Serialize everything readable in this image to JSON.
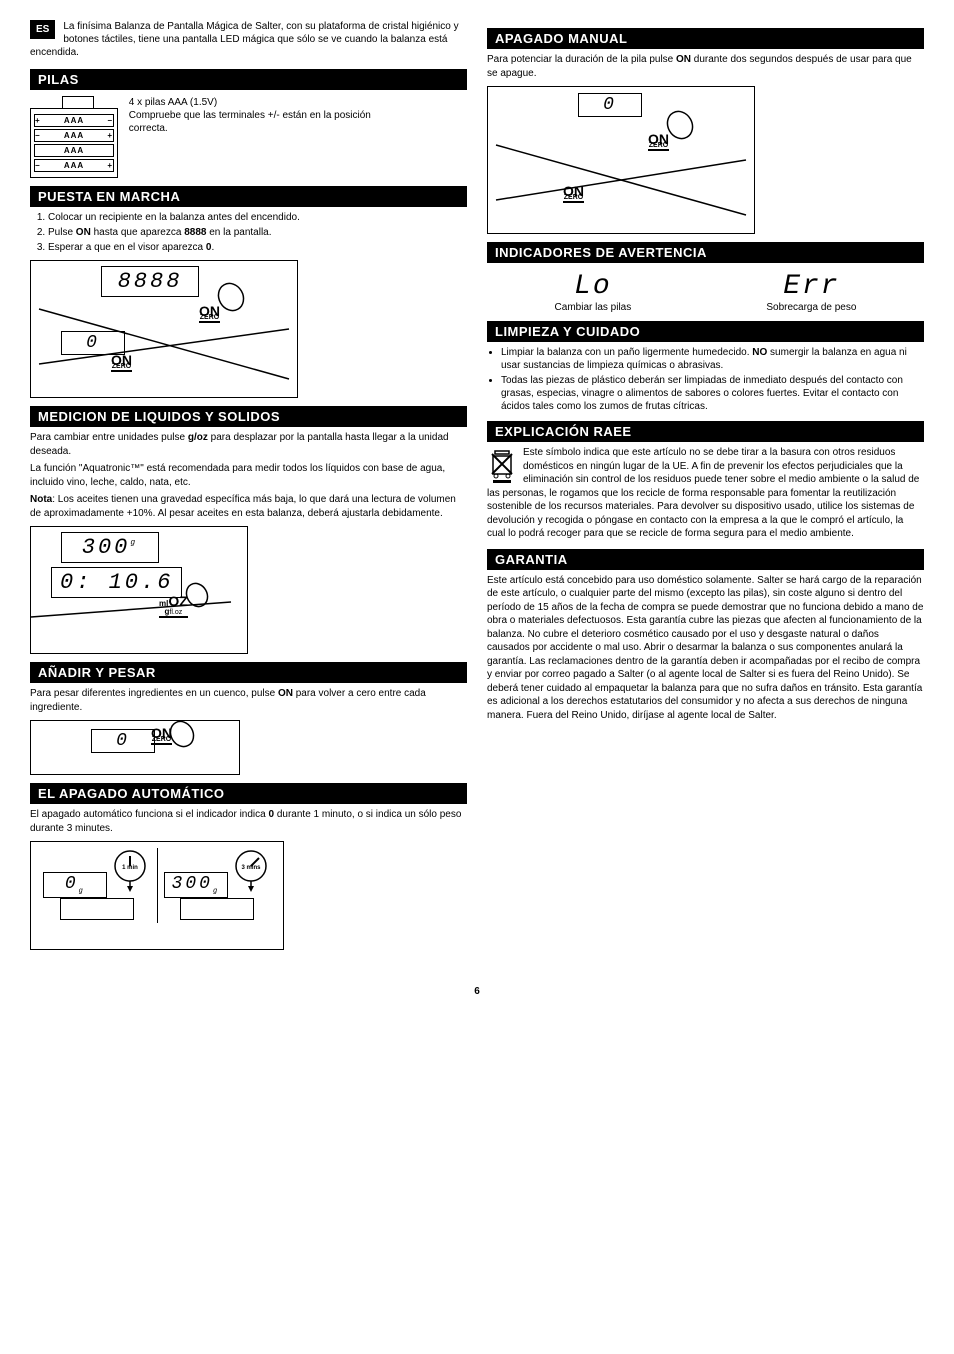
{
  "lang_tag": "ES",
  "intro": "La finísima Balanza de Pantalla Mágica de Salter, con su plataforma de cristal higiénico y botones táctiles, tiene una pantalla LED mágica que sólo se ve cuando la balanza está encendida.",
  "pilas": {
    "header": "PILAS",
    "battery_label": "AAA",
    "text1": "4 x pilas AAA (1.5V)",
    "text2": "Compruebe que las terminales +/- están en la posición correcta."
  },
  "puesta": {
    "header": "PUESTA EN MARCHA",
    "steps": [
      "Colocar un recipiente en la balanza antes del encendido.",
      "Pulse <b>ON</b> hasta que aparezca <b>8888</b> en la pantalla.",
      "Esperar a que en el visor aparezca <b>0</b>."
    ],
    "lcd_8888": "8888",
    "lcd_0": "0",
    "btn_on": "ON",
    "btn_zero": "ZERO"
  },
  "medicion": {
    "header": "MEDICION DE LIQUIDOS Y SOLIDOS",
    "p1": "Para cambiar entre unidades pulse <b>g/oz</b> para desplazar por la pantalla hasta llegar a la unidad deseada.",
    "p2": "La función \"Aquatronic™\" está recomendada para medir todos los líquidos con base de agua, incluido vino, leche, caldo, nata, etc.",
    "p3": "<b>Nota</b>: Los aceites tienen una gravedad específica más baja, lo que dará una lectura de volumen de aproximadamente +10%. Al pesar aceites en esta balanza, deberá ajustarla debidamente.",
    "lcd_300": "300",
    "lcd_106": "0: 10.6",
    "btn_g": "g",
    "btn_oz": "OZ",
    "btn_ml": "ml",
    "btn_floz": "fl.oz"
  },
  "anadir": {
    "header": "AÑADIR Y PESAR",
    "text": "Para pesar diferentes ingredientes en un cuenco, pulse <b>ON</b> para volver a cero entre cada ingrediente.",
    "lcd_0": "0",
    "btn_on": "ON",
    "btn_zero": "ZERO"
  },
  "autooff": {
    "header": "EL APAGADO AUTOMÁTICO",
    "text": "El apagado automático funciona si el indicador indica <b>0</b> durante 1 minuto, o si indica un sólo peso durante 3 minutes.",
    "lcd_0": "0",
    "lcd_300": "300",
    "t1": "1 min",
    "t2": "3 mins"
  },
  "manualoff": {
    "header": "APAGADO MANUAL",
    "text": "Para potenciar la duración de la pila pulse <b>ON</b> durante dos segundos después de usar para que se apague.",
    "lcd_0": "0",
    "btn_on": "ON",
    "btn_zero": "ZERO"
  },
  "indicators": {
    "header": "INDICADORES DE AVERTENCIA",
    "lo": "Lo",
    "lo_label": "Cambiar las pilas",
    "err": "Err",
    "err_label": "Sobrecarga de peso"
  },
  "limpieza": {
    "header": "LIMPIEZA Y CUIDADO",
    "items": [
      "Limpiar la balanza con un paño ligermente humedecido. <b>NO</b> sumergir la balanza en agua ni usar sustancias de limpieza químicas o abrasivas.",
      "Todas las piezas de plástico deberán ser limpiadas de inmediato después del contacto con grasas, especias, vinagre o alimentos de sabores o colores fuertes. Evitar el contacto con ácidos tales como los zumos de frutas cítricas."
    ]
  },
  "raee": {
    "header": "EXPLICACIÓN RAEE",
    "text": "Este símbolo indica que este artículo no se debe tirar a la basura con otros residuos domésticos en ningún lugar de la UE. A fin de prevenir los efectos perjudiciales que la eliminación sin control de los residuos puede tener sobre el medio ambiente o la salud de las personas, le rogamos que los recicle de forma responsable para fomentar la reutilización sostenible de los recursos materiales. Para devolver su dispositivo usado, utilice los sistemas de devolución y recogida o póngase en contacto con la empresa a la que le compró el artículo, la cual lo podrá recoger para que se recicle de forma segura para el medio ambiente."
  },
  "garantia": {
    "header": "GARANTIA",
    "text": "Este artículo está concebido para uso doméstico solamente. Salter se hará cargo de la reparación de este artículo, o cualquier parte del mismo (excepto las pilas), sin coste alguno si dentro del período de 15 años de la fecha de compra se puede demostrar que no funciona debido a mano de obra o materiales defectuosos. Esta garantía cubre las piezas que afecten al funcionamiento de la balanza. No cubre el deterioro cosmético causado por el uso y desgaste natural o daños causados por accidente o mal uso. Abrir o desarmar la balanza o sus componentes anulará la garantía. Las reclamaciones dentro de la garantía deben ir acompañadas por el recibo de compra y enviar por correo pagado a Salter (o al agente local de Salter si es fuera del Reino Unido). Se deberá tener cuidado al empaquetar la balanza para que no sufra daños en tránsito. Esta garantía es adicional a los derechos estatutarios del consumidor y no afecta a sus derechos de ninguna manera. Fuera del Reino Unido, diríjase al agente local de Salter."
  },
  "page_number": "6"
}
